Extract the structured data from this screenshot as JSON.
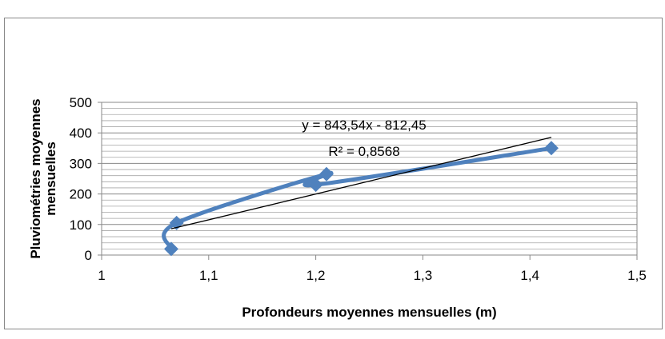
{
  "chart_data": {
    "type": "scatter",
    "xlabel": "Profondeurs moyennes mensuelles (m)",
    "ylabel": "Pluviométries moyennes mensuelles",
    "series": [
      {
        "name": null,
        "color": "#4f81bd",
        "x": [
          1.065,
          1.07,
          1.21,
          1.2,
          1.42
        ],
        "values": [
          20,
          105,
          265,
          230,
          350
        ]
      }
    ],
    "trendline": {
      "slope": 843.54,
      "intercept": -812.45,
      "r2": 0.8568,
      "color": "#000000",
      "label": "y = 843,54x - 812,45",
      "r2_label": "R² = 0,8568"
    },
    "xlim": [
      1,
      1.5
    ],
    "xticks": [
      1,
      {
        "value": 1.1,
        "label": "1,1"
      },
      {
        "value": 1.2,
        "label": "1,2"
      },
      {
        "value": 1.3,
        "label": "1,3"
      },
      {
        "value": 1.4,
        "label": "1,4"
      },
      {
        "value": 1.5,
        "label": "1,5"
      }
    ],
    "ylim": [
      0,
      500
    ],
    "yticks": [
      0,
      100,
      200,
      300,
      400,
      500
    ],
    "y_minor_ticks": [
      20,
      40,
      60,
      80,
      120,
      140,
      160,
      180,
      220,
      240,
      260,
      280,
      320,
      340,
      360,
      380,
      420,
      440,
      460,
      480
    ],
    "grid": true
  }
}
